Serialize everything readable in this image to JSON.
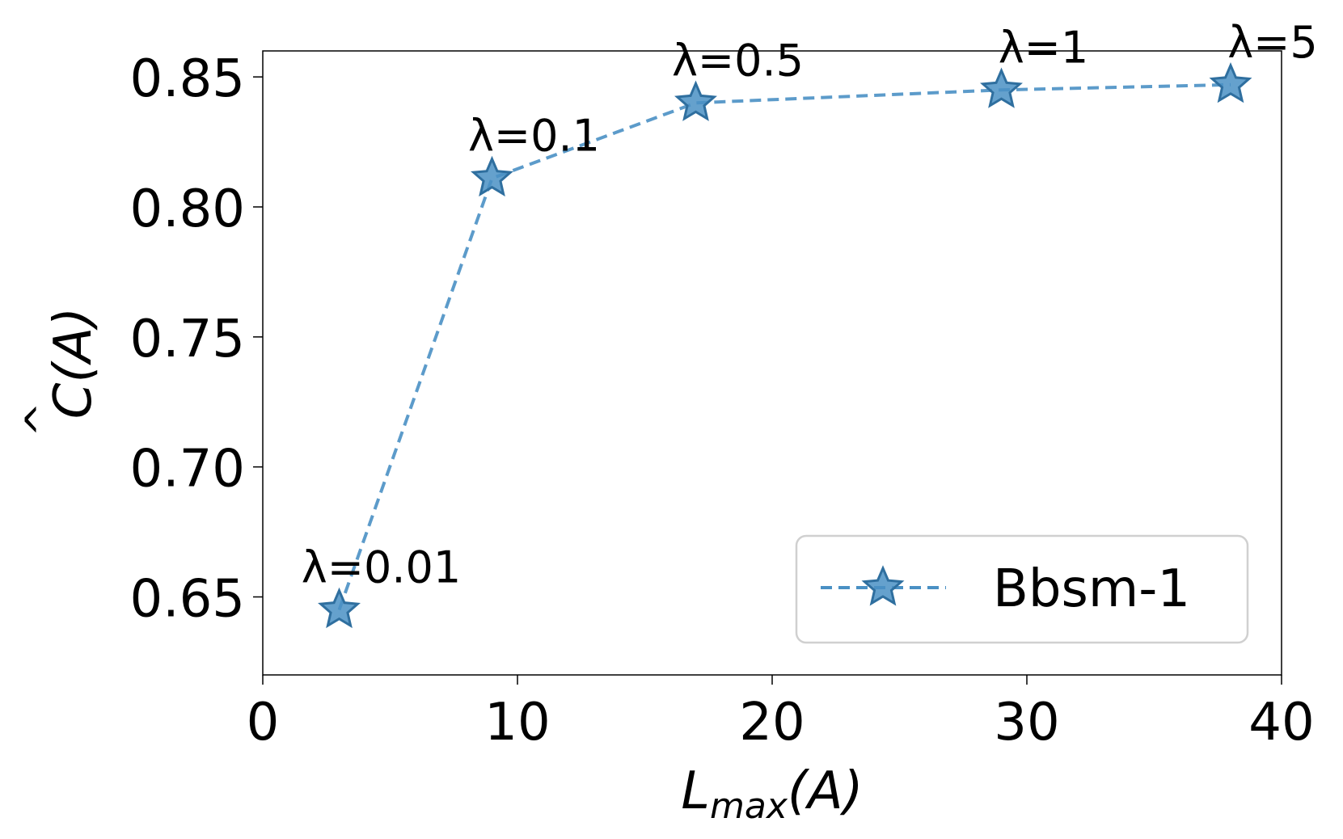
{
  "chart_data": {
    "type": "line",
    "title": "",
    "xlabel": "L_max(A)",
    "xlabel_main": "L",
    "xlabel_sub": "max",
    "xlabel_arg": "(A)",
    "ylabel": "Ĉ(A)",
    "ylabel_main": "C",
    "ylabel_hat": "^",
    "ylabel_arg": "(A)",
    "xlim": [
      0,
      40
    ],
    "ylim": [
      0.62,
      0.86
    ],
    "xticks": [
      0,
      10,
      20,
      30,
      40
    ],
    "xtick_labels": [
      "0",
      "10",
      "20",
      "30",
      "40"
    ],
    "yticks": [
      0.65,
      0.7,
      0.75,
      0.8,
      0.85
    ],
    "ytick_labels": [
      "0.65",
      "0.70",
      "0.75",
      "0.80",
      "0.85"
    ],
    "grid": false,
    "legend_position": "lower-right",
    "series": [
      {
        "name": "Bbsm-1",
        "color": "#4a90c4",
        "line_style": "dashed",
        "marker": "star",
        "points": [
          {
            "x": 3,
            "y": 0.645,
            "label": "λ=0.01"
          },
          {
            "x": 9,
            "y": 0.811,
            "label": "λ=0.1"
          },
          {
            "x": 17,
            "y": 0.84,
            "label": "λ=0.5"
          },
          {
            "x": 29,
            "y": 0.845,
            "label": "λ=1"
          },
          {
            "x": 38,
            "y": 0.847,
            "label": "λ=5"
          }
        ]
      }
    ]
  }
}
